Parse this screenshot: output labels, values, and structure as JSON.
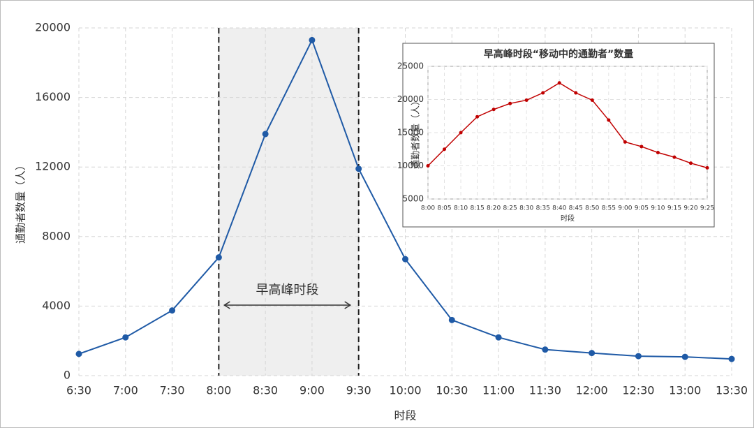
{
  "chart_data": [
    {
      "type": "line",
      "x_label": "时段",
      "y_label": "通勤者数量（人）",
      "annotation": "早高峰时段",
      "categories": [
        "6:30",
        "7:00",
        "7:30",
        "8:00",
        "8:30",
        "9:00",
        "9:30",
        "10:00",
        "10:30",
        "11:00",
        "11:30",
        "12:00",
        "12:30",
        "13:00",
        "13:30"
      ],
      "series": [
        {
          "color": "#1f5aa6",
          "values": [
            1250,
            2200,
            3750,
            6800,
            13900,
            19300,
            11900,
            6700,
            3200,
            2200,
            1500,
            1300,
            1120,
            1080,
            960
          ]
        }
      ],
      "ylim": [
        0,
        20000
      ],
      "yticks": [
        0,
        4000,
        8000,
        12000,
        16000,
        20000
      ],
      "grid": true
    },
    {
      "type": "line",
      "title": "早高峰时段“移动中的通勤者”数量",
      "x_label": "时段",
      "y_label": "通勤者数量（人）",
      "categories": [
        "8:00",
        "8:05",
        "8:10",
        "8:15",
        "8:20",
        "8:25",
        "8:30",
        "8:35",
        "8:40",
        "8:45",
        "8:50",
        "8:55",
        "9:00",
        "9:05",
        "9:10",
        "9:15",
        "9:20",
        "9:25"
      ],
      "series": [
        {
          "color": "#c00000",
          "values": [
            10000,
            12500,
            15000,
            17400,
            18500,
            19400,
            19900,
            21000,
            22500,
            21000,
            19900,
            16900,
            13600,
            12900,
            12000,
            11300,
            10400,
            9700
          ]
        }
      ],
      "ylim": [
        5000,
        25000
      ],
      "yticks": [
        5000,
        10000,
        15000,
        20000,
        25000
      ],
      "grid": true
    }
  ]
}
